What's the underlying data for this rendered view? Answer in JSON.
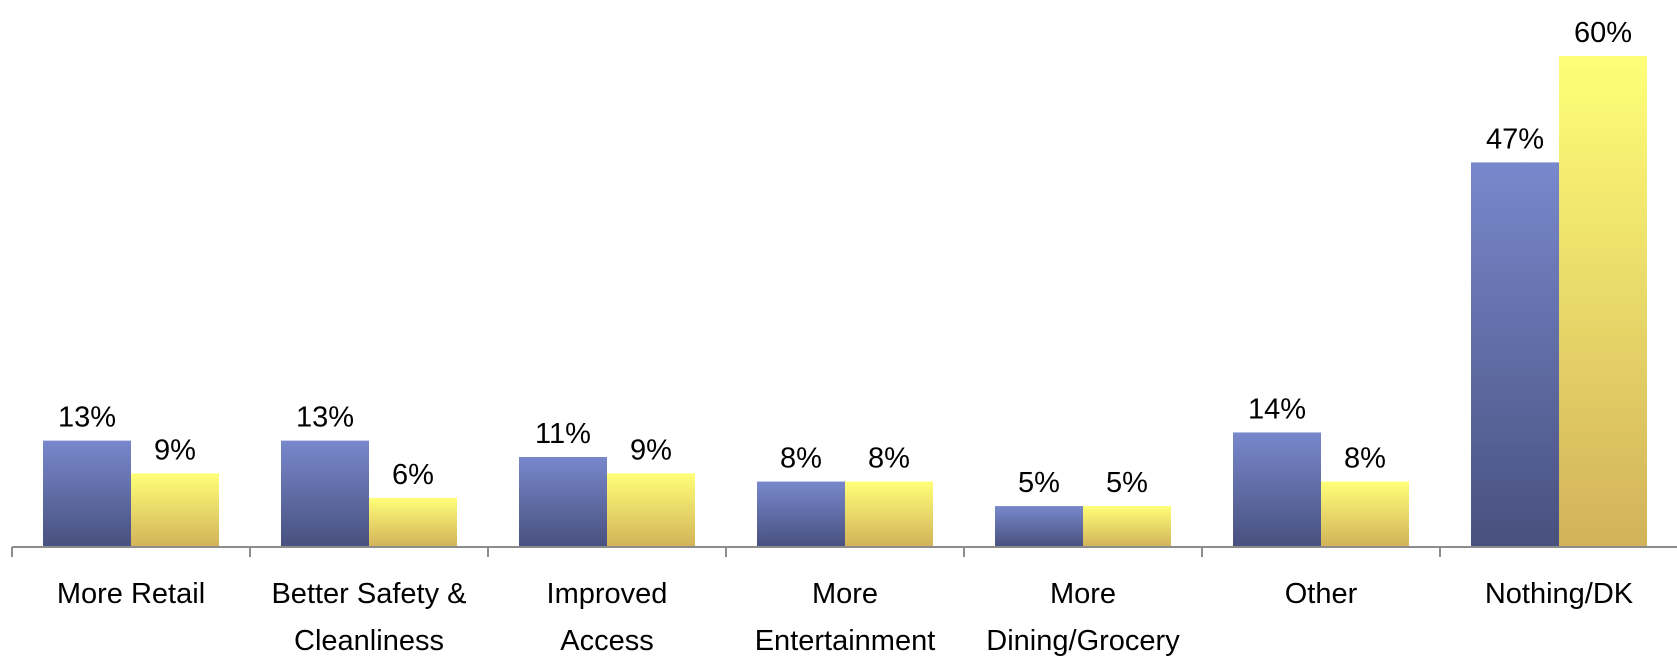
{
  "chart_data": {
    "type": "bar",
    "categories": [
      [
        "More Retail"
      ],
      [
        "Better Safety &",
        "Cleanliness"
      ],
      [
        "Improved",
        "Access"
      ],
      [
        "More",
        "Entertainment"
      ],
      [
        "More",
        "Dining/Grocery"
      ],
      [
        "Other"
      ],
      [
        "Nothing/DK"
      ]
    ],
    "series": [
      {
        "values": [
          13,
          13,
          11,
          8,
          5,
          14,
          47
        ],
        "labels": [
          "13%",
          "13%",
          "11%",
          "8%",
          "5%",
          "14%",
          "47%"
        ],
        "color_top": "#7888cc",
        "color_bottom": "#48507e"
      },
      {
        "values": [
          9,
          6,
          9,
          8,
          5,
          8,
          60
        ],
        "labels": [
          "9%",
          "6%",
          "9%",
          "8%",
          "5%",
          "8%",
          "60%"
        ],
        "color_top": "#ffff78",
        "color_bottom": "#d2b25a"
      }
    ],
    "ylim": [
      0,
      60
    ],
    "grid": false,
    "legend": "none",
    "title": "",
    "xlabel": "",
    "ylabel": ""
  }
}
